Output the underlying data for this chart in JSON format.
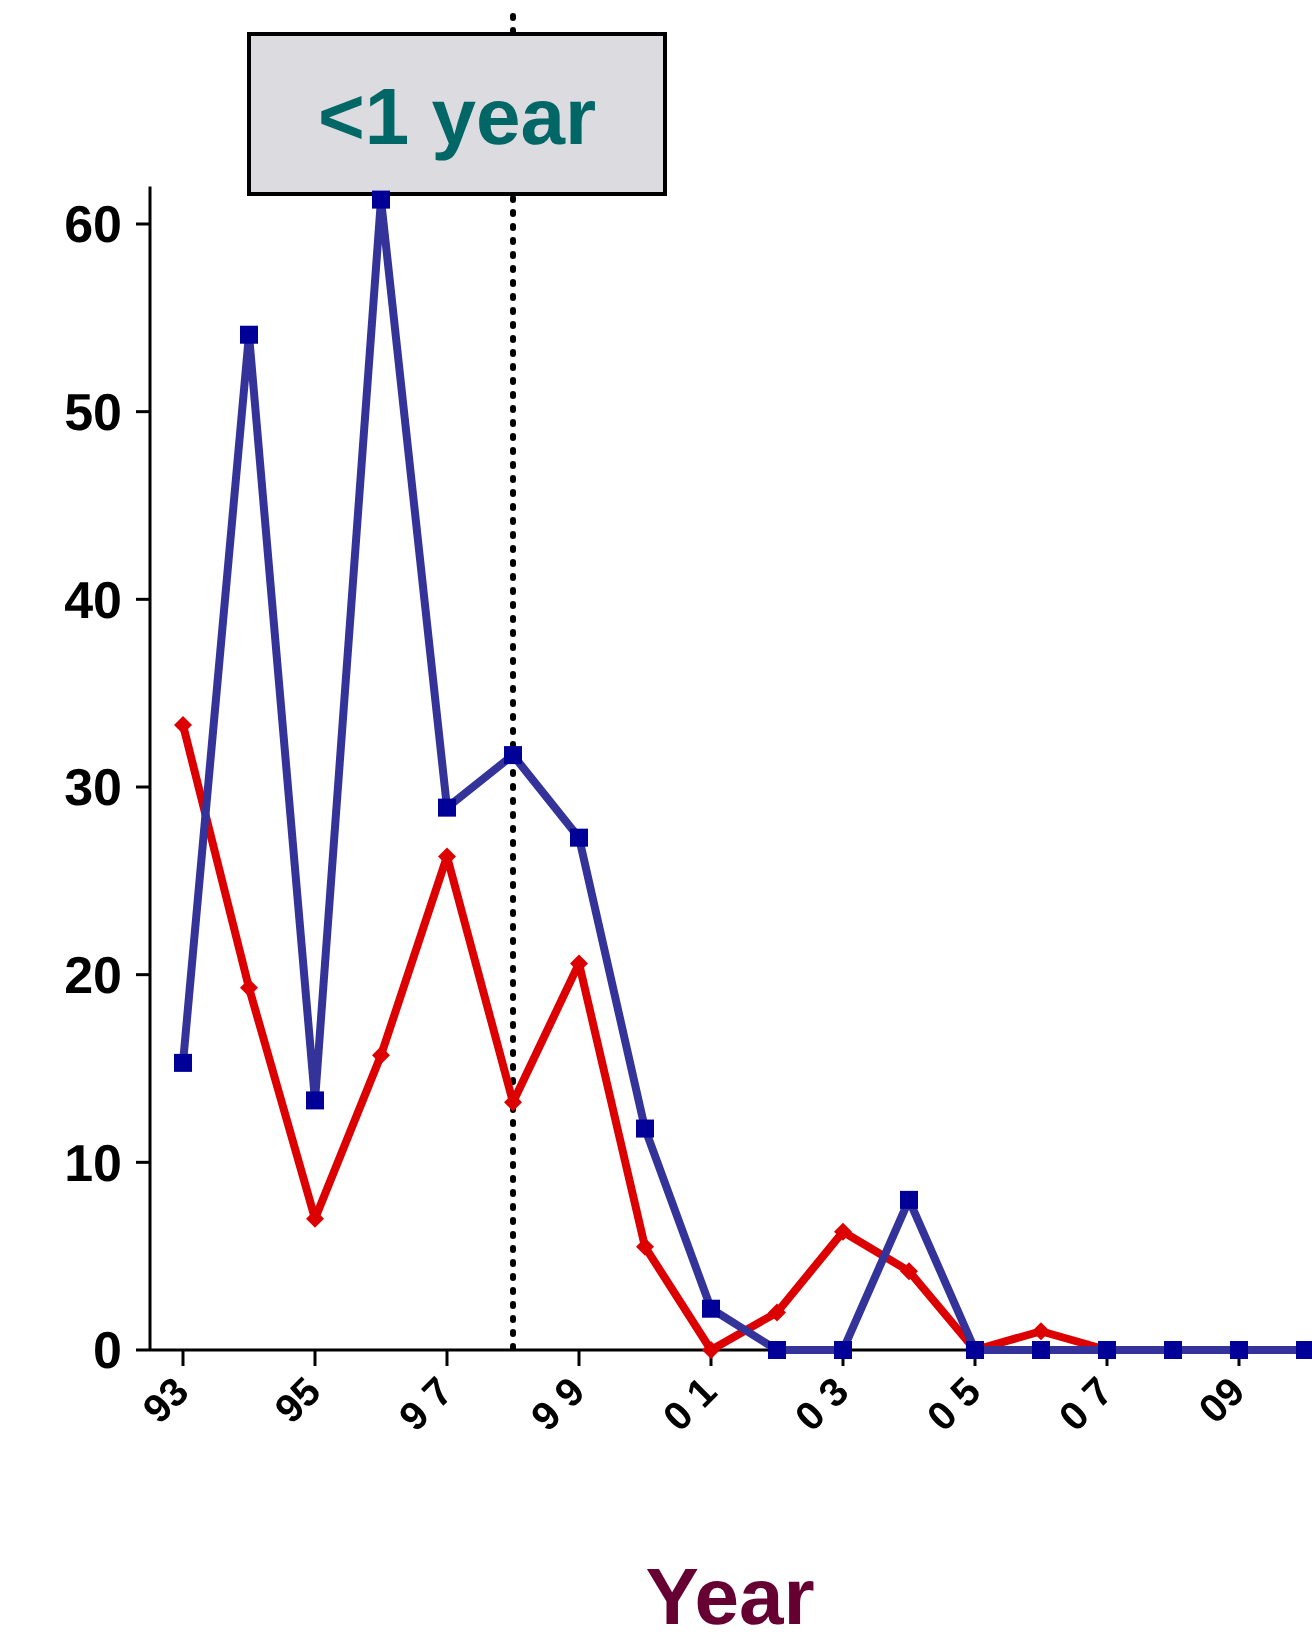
{
  "chart_data": {
    "type": "line",
    "xlabel": "Year",
    "x": [
      1993,
      1994,
      1995,
      1996,
      1997,
      1998,
      1999,
      2000,
      2001,
      2002,
      2003,
      2004,
      2005,
      2006,
      2007,
      2008,
      2009,
      2010
    ],
    "xlim": [
      1992.5,
      2010.5
    ],
    "xticks": [
      {
        "value": 1993,
        "label": "93"
      },
      {
        "value": 1995,
        "label": "95"
      },
      {
        "value": 1997,
        "label": "9 7"
      },
      {
        "value": 1999,
        "label": "9 9"
      },
      {
        "value": 2001,
        "label": "0 1"
      },
      {
        "value": 2003,
        "label": "0 3"
      },
      {
        "value": 2005,
        "label": "0 5"
      },
      {
        "value": 2007,
        "label": "0 7"
      },
      {
        "value": 2009,
        "label": "09"
      }
    ],
    "ylim": [
      0,
      62
    ],
    "yticks": [
      0,
      10,
      20,
      30,
      40,
      50,
      60
    ],
    "series": [
      {
        "color": "#dd0000",
        "marker": "diamond",
        "values": [
          33.3,
          19.3,
          7.0,
          15.7,
          26.3,
          13.2,
          20.6,
          5.5,
          0,
          2.0,
          6.3,
          4.2,
          0,
          1.0,
          0,
          0,
          null,
          null
        ]
      },
      {
        "color": "#333399",
        "marker": "square",
        "values": [
          15.3,
          54.1,
          13.3,
          61.3,
          28.9,
          31.7,
          27.3,
          11.8,
          2.2,
          0,
          0,
          8.0,
          0,
          0,
          0,
          0,
          0,
          0
        ]
      }
    ],
    "ref_lines": [
      {
        "axis": "x",
        "value": 1998,
        "label": "<1 year",
        "line_style": "dotted"
      }
    ],
    "grid": false
  }
}
